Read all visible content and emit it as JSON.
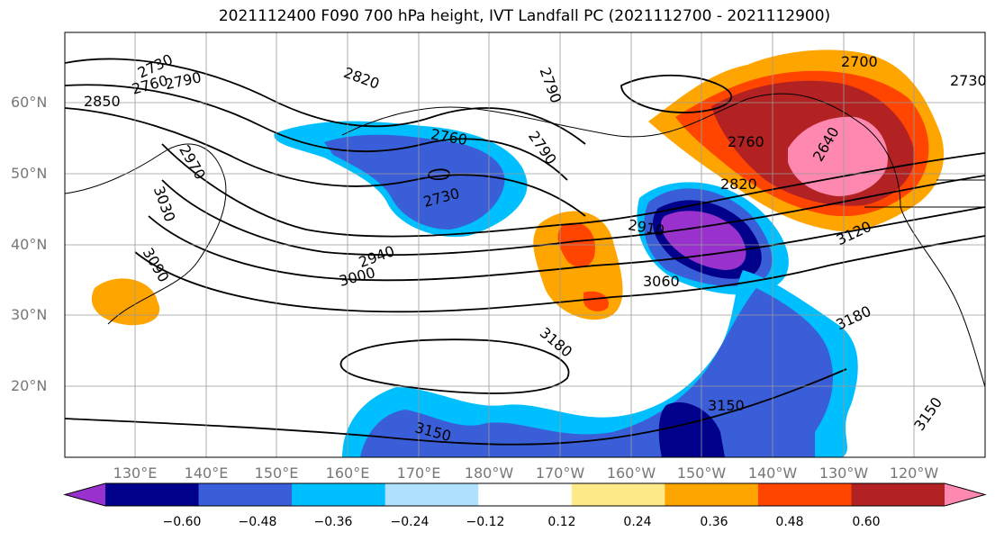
{
  "title": "2021112400 F090 700 hPa height, IVT Landfall PC (2021112700 - 2021112900)",
  "lat_labels": [
    "60°N",
    "50°N",
    "40°N",
    "30°N",
    "20°N"
  ],
  "lon_labels": [
    "130°E",
    "140°E",
    "150°E",
    "160°E",
    "170°E",
    "180°W",
    "170°W",
    "160°W",
    "150°W",
    "140°W",
    "130°W",
    "120°W"
  ],
  "contour_labels": [
    "2730",
    "2760",
    "2790",
    "2850",
    "2970",
    "3030",
    "3090",
    "2820",
    "2760",
    "2790",
    "2730",
    "2940",
    "3000",
    "2910",
    "3060",
    "2790",
    "2760",
    "2820",
    "2700",
    "2730",
    "3120",
    "3180",
    "3180",
    "3150",
    "3150",
    "3150",
    "2640"
  ],
  "colorbar": {
    "ticks": [
      "−0.60",
      "−0.48",
      "−0.36",
      "−0.24",
      "−0.12",
      "0.12",
      "0.24",
      "0.36",
      "0.48",
      "0.60"
    ],
    "colors": [
      "#9932cc",
      "#00008b",
      "#3a5ed8",
      "#00bfff",
      "#b0e2ff",
      "#ffffff",
      "#ffea8a",
      "#ffa500",
      "#ff4500",
      "#b22222",
      "#ff88b0"
    ],
    "extend": "both"
  },
  "colors": {
    "land_line": "#000000",
    "contour": "#000000",
    "grid": "#9a9a9a"
  }
}
